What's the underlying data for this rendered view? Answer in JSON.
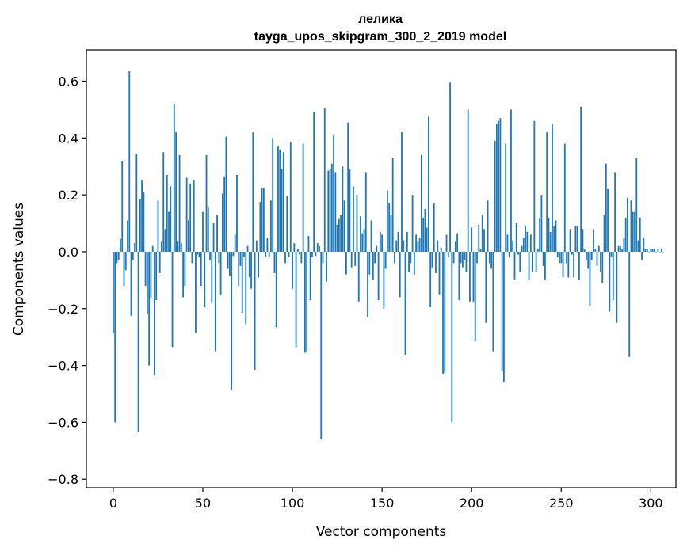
{
  "chart_data": {
    "type": "bar",
    "title": "лелика",
    "subtitle": "tayga_upos_skipgram_300_2_2019 model",
    "xlabel": "Vector components",
    "ylabel": "Components values",
    "xlim": [
      -15,
      314
    ],
    "ylim": [
      -0.83,
      0.71
    ],
    "xticks": [
      0,
      50,
      100,
      150,
      200,
      250,
      300
    ],
    "yticks": [
      -0.8,
      -0.6,
      -0.4,
      -0.2,
      0.0,
      0.2,
      0.4,
      0.6
    ],
    "ytick_labels": [
      "−0.8",
      "−0.6",
      "−0.4",
      "−0.2",
      "0.0",
      "0.2",
      "0.4",
      "0.6"
    ],
    "xtick_labels": [
      "0",
      "50",
      "100",
      "150",
      "200",
      "250",
      "300"
    ],
    "grid": false,
    "bar_color": "#1f77b4",
    "values": [
      -0.285,
      -0.6,
      -0.04,
      -0.03,
      0.045,
      0.32,
      -0.12,
      -0.065,
      0.11,
      0.635,
      -0.225,
      -0.03,
      0.03,
      0.345,
      -0.635,
      0.185,
      0.25,
      0.21,
      -0.12,
      -0.22,
      -0.4,
      -0.165,
      0.02,
      -0.435,
      -0.17,
      0.18,
      -0.075,
      0.035,
      0.35,
      0.08,
      0.27,
      0.14,
      0.23,
      -0.335,
      0.52,
      0.42,
      0.035,
      0.34,
      0.03,
      -0.16,
      -0.12,
      0.26,
      0.11,
      0.24,
      -0.04,
      0.25,
      -0.285,
      -0.01,
      -0.02,
      -0.12,
      0.14,
      -0.195,
      0.34,
      0.155,
      -0.03,
      -0.18,
      0.1,
      -0.35,
      0.13,
      -0.04,
      -0.15,
      0.205,
      0.265,
      0.405,
      -0.06,
      -0.085,
      -0.485,
      -0.015,
      0.06,
      0.27,
      -0.12,
      -0.05,
      -0.215,
      -0.02,
      -0.255,
      0.02,
      -0.09,
      -0.13,
      0.42,
      -0.415,
      0.04,
      -0.09,
      0.175,
      0.225,
      0.225,
      -0.02,
      0.05,
      -0.02,
      0.18,
      0.4,
      -0.075,
      -0.265,
      0.37,
      0.36,
      0.29,
      0.35,
      -0.04,
      0.195,
      -0.02,
      0.385,
      -0.13,
      0.03,
      -0.335,
      0.01,
      -0.01,
      -0.04,
      0.38,
      -0.355,
      -0.35,
      0.055,
      -0.17,
      -0.02,
      0.49,
      -0.015,
      0.03,
      0.02,
      -0.66,
      -0.04,
      0.505,
      -0.105,
      0.285,
      0.29,
      0.31,
      0.41,
      0.28,
      0.095,
      0.115,
      0.13,
      0.3,
      0.18,
      -0.08,
      0.455,
      0.29,
      -0.055,
      0.23,
      -0.05,
      0.2,
      -0.175,
      0.125,
      0.065,
      0.08,
      0.28,
      -0.23,
      -0.08,
      0.11,
      -0.1,
      -0.04,
      0.02,
      -0.17,
      0.07,
      0.06,
      -0.2,
      -0.06,
      0.215,
      0.17,
      0.13,
      0.33,
      -0.04,
      0.04,
      0.07,
      -0.16,
      0.42,
      0.04,
      -0.365,
      0.07,
      -0.07,
      -0.04,
      0.2,
      -0.08,
      0.06,
      0.035,
      0.05,
      0.34,
      0.12,
      0.15,
      0.085,
      0.475,
      -0.195,
      -0.055,
      0.17,
      -0.075,
      0.04,
      -0.15,
      0.015,
      -0.43,
      -0.425,
      0.06,
      -0.02,
      0.595,
      -0.6,
      -0.04,
      0.035,
      0.065,
      -0.17,
      -0.04,
      -0.055,
      -0.03,
      -0.07,
      0.5,
      -0.175,
      0.085,
      -0.175,
      -0.315,
      -0.04,
      0.095,
      0.01,
      0.13,
      0.08,
      -0.25,
      0.18,
      -0.04,
      -0.06,
      -0.35,
      0.39,
      0.45,
      0.46,
      0.47,
      -0.42,
      -0.46,
      0.38,
      0.06,
      -0.02,
      0.5,
      0.04,
      -0.1,
      0.1,
      -0.01,
      -0.07,
      0.02,
      0.05,
      0.09,
      0.07,
      -0.1,
      0.06,
      -0.07,
      0.46,
      -0.07,
      0.01,
      0.12,
      0.2,
      -0.05,
      -0.1,
      0.42,
      0.12,
      0.07,
      0.45,
      0.09,
      0.11,
      -0.02,
      -0.04,
      -0.04,
      -0.09,
      0.38,
      -0.04,
      -0.09,
      0.08,
      -0.01,
      -0.09,
      0.09,
      0.09,
      -0.1,
      0.51,
      0.08,
      0.01,
      -0.03,
      -0.06,
      -0.19,
      -0.03,
      0.08,
      0.01,
      -0.05,
      0.02,
      -0.07,
      -0.11,
      0.13,
      0.31,
      0.22,
      -0.21,
      -0.02,
      -0.17,
      0.28,
      -0.25,
      0.02,
      0.02,
      0.01,
      0.05,
      0.12,
      0.19,
      -0.37,
      0.18,
      0.14,
      0.14,
      0.33,
      0.04,
      0.12,
      -0.03,
      0.05,
      0.01,
      0.01,
      0.0,
      0.01,
      0.01,
      0.01,
      0.0,
      0.01,
      0.0,
      0.01,
      0.0
    ]
  }
}
